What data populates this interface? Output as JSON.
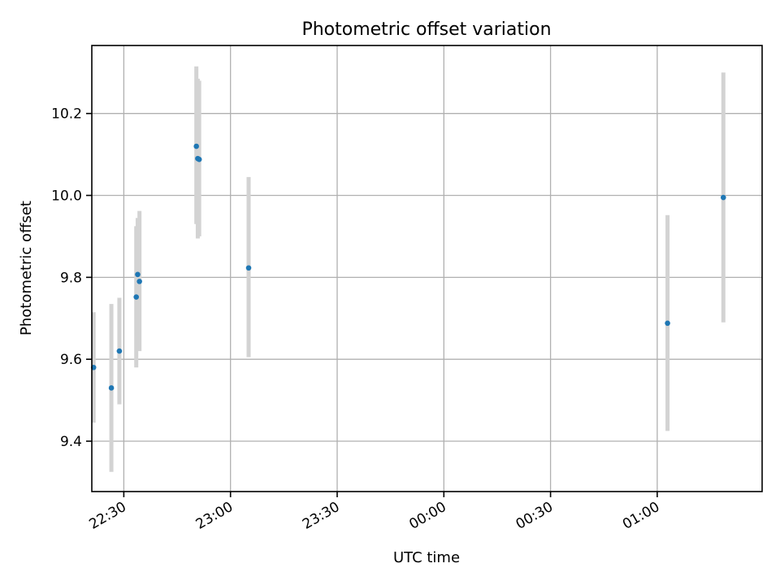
{
  "chart_data": {
    "type": "scatter",
    "title": "Photometric offset variation",
    "xlabel": "UTC time",
    "ylabel": "Photometric offset",
    "x_ticks": [
      "22:30",
      "23:00",
      "23:30",
      "00:00",
      "00:30",
      "01:00"
    ],
    "x_tick_values": [
      "22:30",
      "23:00",
      "23:30",
      "00:00",
      "00:30",
      "01:00"
    ],
    "xlim": [
      "22:21:00",
      "01:29:30"
    ],
    "y_ticks": [
      "9.4",
      "9.6",
      "9.8",
      "10.0",
      "10.2"
    ],
    "y_tick_values": [
      9.4,
      9.6,
      9.8,
      10.0,
      10.2
    ],
    "ylim": [
      9.277,
      10.366
    ],
    "grid": true,
    "legend": "none",
    "colors": {
      "point": "#1f77b4",
      "errorbar": "#d3d3d3"
    },
    "points": [
      {
        "x": "22:21:30",
        "y": 9.58,
        "err_low": 9.445,
        "err_high": 9.715
      },
      {
        "x": "22:26:30",
        "y": 9.53,
        "err_low": 9.325,
        "err_high": 9.735
      },
      {
        "x": "22:28:45",
        "y": 9.62,
        "err_low": 9.49,
        "err_high": 9.75
      },
      {
        "x": "22:33:30",
        "y": 9.752,
        "err_low": 9.58,
        "err_high": 9.925
      },
      {
        "x": "22:33:54",
        "y": 9.807,
        "err_low": 9.655,
        "err_high": 9.945
      },
      {
        "x": "22:34:24",
        "y": 9.79,
        "err_low": 9.62,
        "err_high": 9.962
      },
      {
        "x": "22:50:24",
        "y": 10.12,
        "err_low": 9.93,
        "err_high": 10.315
      },
      {
        "x": "22:50:48",
        "y": 10.09,
        "err_low": 9.895,
        "err_high": 10.285
      },
      {
        "x": "22:51:12",
        "y": 10.088,
        "err_low": 9.9,
        "err_high": 10.28
      },
      {
        "x": "23:05:06",
        "y": 9.823,
        "err_low": 9.605,
        "err_high": 10.045
      },
      {
        "x": "01:02:54",
        "y": 9.688,
        "err_low": 9.425,
        "err_high": 9.952
      },
      {
        "x": "01:18:36",
        "y": 9.995,
        "err_low": 9.69,
        "err_high": 10.3
      }
    ]
  }
}
